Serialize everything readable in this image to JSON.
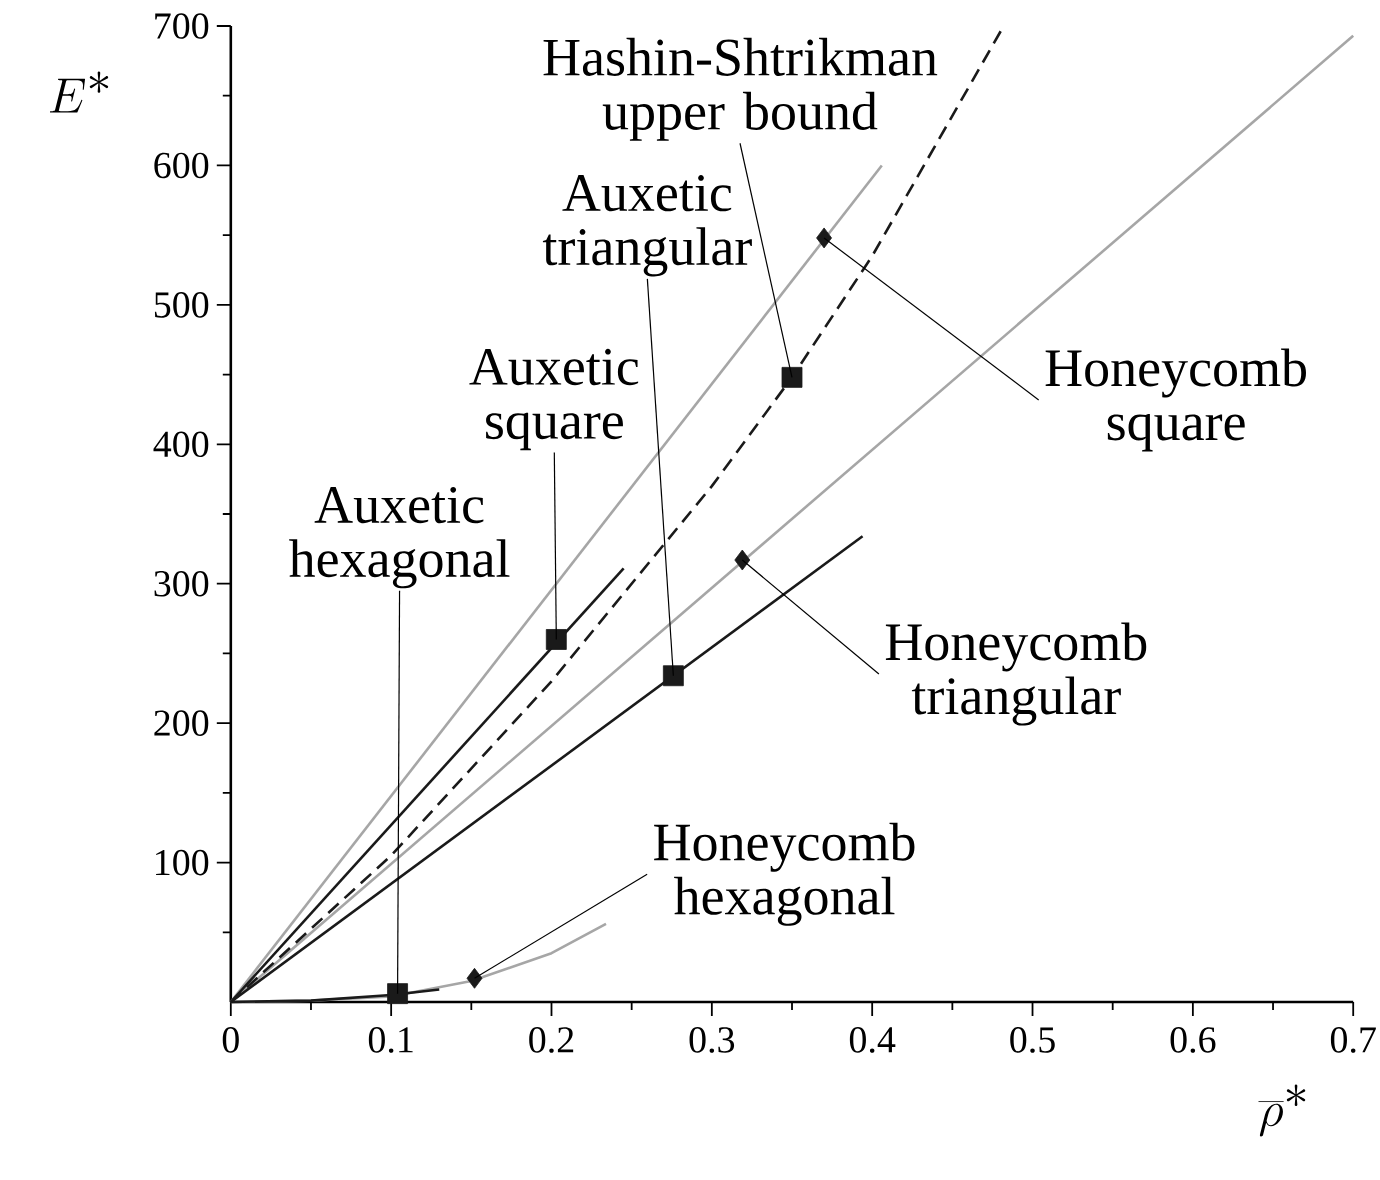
{
  "chart_data": {
    "type": "line",
    "xlabel": "\\overline{\\rho}^*",
    "ylabel": "E^*",
    "marker": "none",
    "xlim": [
      0,
      0.7
    ],
    "ylim": [
      0,
      700
    ],
    "xticks": [
      0,
      0.1,
      0.2,
      0.3,
      0.4,
      0.5,
      0.6,
      0.7,
      {
        "value": 0.05,
        "label": null
      },
      {
        "value": 0.15,
        "label": null
      },
      {
        "value": 0.25,
        "label": null
      },
      {
        "value": 0.35,
        "label": null
      },
      {
        "value": 0.45,
        "label": null
      },
      {
        "value": 0.55,
        "label": null
      },
      {
        "value": 0.65,
        "label": null
      }
    ],
    "yticks": [
      100,
      200,
      300,
      400,
      500,
      600,
      700,
      {
        "value": 50,
        "label": null
      },
      {
        "value": 150,
        "label": null
      },
      {
        "value": 250,
        "label": null
      },
      {
        "value": 350,
        "label": null
      },
      {
        "value": 450,
        "label": null
      },
      {
        "value": 550,
        "label": null
      },
      {
        "value": 650,
        "label": null
      }
    ],
    "series": [
      {
        "type": "line",
        "color": "#a6a6a6",
        "x": [
          0,
          0.406
        ],
        "values": [
          0,
          600
        ]
      },
      {
        "type": "line",
        "color": "#a6a6a6",
        "x": [
          0,
          0.7
        ],
        "values": [
          0,
          693
        ]
      },
      {
        "type": "line",
        "color": "#a6a6a6",
        "x": [
          0,
          0.05,
          0.1,
          0.15,
          0.2,
          0.234
        ],
        "values": [
          0,
          1,
          4,
          15,
          35,
          56
        ]
      },
      {
        "type": "line",
        "color": "#1a1a1a",
        "x": [
          0,
          0.245
        ],
        "values": [
          0,
          311
        ]
      },
      {
        "type": "line",
        "color": "#1a1a1a",
        "x": [
          0,
          0.394
        ],
        "values": [
          0,
          334
        ]
      },
      {
        "type": "line",
        "color": "#1a1a1a",
        "x": [
          0,
          0.05,
          0.1,
          0.13
        ],
        "values": [
          0,
          1,
          5,
          9
        ]
      },
      {
        "type": "line",
        "color": "#1a1a1a",
        "line_style": "dashed",
        "x": [
          0,
          0.1,
          0.2,
          0.3,
          0.35,
          0.4,
          0.482
        ],
        "values": [
          0,
          105,
          230,
          370,
          448,
          535,
          700
        ]
      },
      {
        "type": "scatter",
        "marker": "square",
        "color": "#1a1a1a",
        "x": [
          0.35,
          0.276,
          0.203,
          0.104
        ],
        "values": [
          448,
          234,
          260,
          6
        ]
      },
      {
        "type": "scatter",
        "marker": "diamond",
        "color": "#1a1a1a",
        "x": [
          0.37,
          0.319,
          0.152
        ],
        "values": [
          548,
          317,
          17
        ]
      }
    ],
    "annotations": [
      {
        "text": "Hashin-Shtrikman upper bound",
        "x": 0.35,
        "y": 448
      },
      {
        "text": "Auxetic triangular",
        "x": 0.276,
        "y": 234
      },
      {
        "text": "Auxetic square",
        "x": 0.203,
        "y": 260
      },
      {
        "text": "Auxetic hexagonal",
        "x": 0.104,
        "y": 6
      },
      {
        "text": "Honeycomb square",
        "x": 0.37,
        "y": 548
      },
      {
        "text": "Honeycomb triangular",
        "x": 0.319,
        "y": 317
      },
      {
        "text": "Honeycomb hexagonal",
        "x": 0.152,
        "y": 17
      }
    ]
  }
}
